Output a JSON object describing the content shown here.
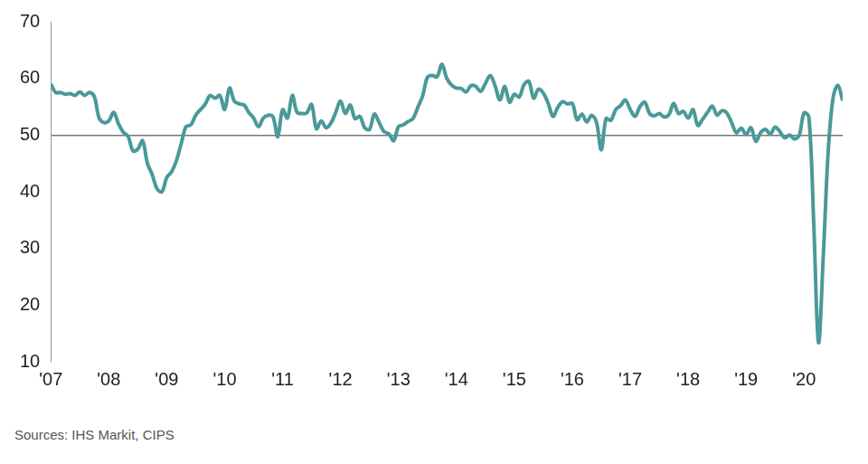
{
  "chart_data": {
    "type": "line",
    "categories": [
      "'07",
      null,
      null,
      null,
      null,
      null,
      null,
      null,
      null,
      null,
      null,
      null,
      "'08",
      null,
      null,
      null,
      null,
      null,
      null,
      null,
      null,
      null,
      null,
      null,
      "'09",
      null,
      null,
      null,
      null,
      null,
      null,
      null,
      null,
      null,
      null,
      null,
      "'10",
      null,
      null,
      null,
      null,
      null,
      null,
      null,
      null,
      null,
      null,
      null,
      "'11",
      null,
      null,
      null,
      null,
      null,
      null,
      null,
      null,
      null,
      null,
      null,
      "'12",
      null,
      null,
      null,
      null,
      null,
      null,
      null,
      null,
      null,
      null,
      null,
      "'13",
      null,
      null,
      null,
      null,
      null,
      null,
      null,
      null,
      null,
      null,
      null,
      "'14",
      null,
      null,
      null,
      null,
      null,
      null,
      null,
      null,
      null,
      null,
      null,
      "'15",
      null,
      null,
      null,
      null,
      null,
      null,
      null,
      null,
      null,
      null,
      null,
      "'16",
      null,
      null,
      null,
      null,
      null,
      null,
      null,
      null,
      null,
      null,
      null,
      "'17",
      null,
      null,
      null,
      null,
      null,
      null,
      null,
      null,
      null,
      null,
      null,
      "'18",
      null,
      null,
      null,
      null,
      null,
      null,
      null,
      null,
      null,
      null,
      null,
      "'19",
      null,
      null,
      null,
      null,
      null,
      null,
      null,
      null,
      null,
      null,
      null,
      "'20",
      null,
      null,
      null,
      null,
      null,
      null,
      null,
      null
    ],
    "values": [
      59.0,
      57.5,
      57.5,
      57.2,
      57.3,
      57.0,
      57.6,
      57.0,
      57.5,
      56.8,
      53.0,
      52.2,
      52.5,
      54.0,
      52.0,
      50.5,
      49.8,
      47.2,
      47.5,
      49.0,
      45.0,
      43.0,
      40.5,
      40.0,
      42.5,
      43.5,
      45.5,
      48.5,
      51.5,
      51.8,
      53.5,
      54.5,
      55.5,
      57.0,
      56.5,
      57.0,
      54.5,
      58.3,
      56.0,
      55.5,
      55.3,
      54.0,
      53.0,
      51.5,
      53.0,
      53.5,
      53.2,
      49.7,
      54.5,
      53.0,
      57.0,
      54.0,
      53.8,
      53.9,
      55.4,
      51.1,
      52.5,
      51.3,
      52.1,
      54.0,
      56.0,
      53.8,
      55.3,
      52.9,
      53.3,
      51.3,
      51.0,
      53.7,
      52.2,
      50.6,
      50.2,
      49.0,
      51.5,
      51.8,
      52.4,
      52.9,
      54.9,
      56.9,
      60.2,
      60.5,
      60.3,
      62.5,
      60.0,
      58.8,
      58.3,
      58.2,
      57.6,
      58.7,
      58.6,
      57.7,
      59.1,
      60.5,
      58.7,
      56.2,
      58.6,
      55.8,
      57.2,
      56.7,
      58.9,
      59.5,
      56.5,
      58.1,
      57.4,
      55.6,
      53.3,
      54.9,
      55.9,
      55.5,
      55.6,
      52.7,
      53.7,
      52.3,
      53.5,
      52.3,
      47.4,
      52.9,
      52.6,
      54.5,
      55.2,
      56.2,
      54.5,
      53.3,
      55.0,
      55.8,
      53.8,
      53.4,
      53.8,
      53.2,
      53.6,
      55.6,
      53.8,
      54.2,
      53.0,
      54.5,
      51.7,
      52.8,
      54.0,
      55.1,
      53.5,
      54.3,
      53.9,
      52.2,
      50.4,
      51.2,
      50.1,
      51.3,
      48.9,
      50.4,
      51.0,
      50.2,
      51.4,
      50.6,
      49.5,
      50.0,
      49.3,
      50.0,
      53.9,
      53.2,
      34.5,
      13.4,
      29.0,
      47.1,
      56.5,
      58.8,
      56.1
    ],
    "color": "#4b9999",
    "ylim": [
      10,
      70
    ],
    "yticks": [
      10,
      20,
      30,
      40,
      50,
      60,
      70
    ],
    "threshold": 50,
    "grid": false,
    "source": "Sources: IHS Markit, CIPS"
  }
}
